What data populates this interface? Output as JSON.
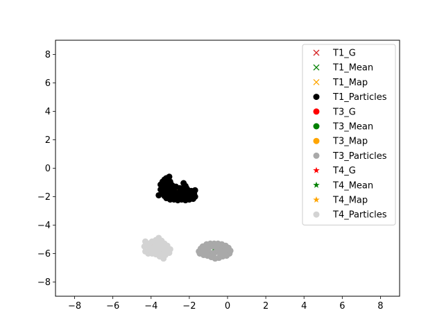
{
  "chart_data": {
    "type": "scatter",
    "title": "",
    "xlabel": "",
    "ylabel": "",
    "xlim": [
      -9,
      9
    ],
    "ylim": [
      -9,
      9
    ],
    "xticks": [
      -8,
      -6,
      -4,
      -2,
      0,
      2,
      4,
      6,
      8
    ],
    "yticks": [
      -8,
      -6,
      -4,
      -2,
      0,
      2,
      4,
      6,
      8
    ],
    "xtick_labels": [
      "−8",
      "−6",
      "−4",
      "−2",
      "0",
      "2",
      "4",
      "6",
      "8"
    ],
    "ytick_labels": [
      "−8",
      "−6",
      "−4",
      "−2",
      "0",
      "2",
      "4",
      "6",
      "8"
    ],
    "grid": false,
    "legend_position": "top-right",
    "series": [
      {
        "name": "T1_G",
        "marker": "x",
        "color": "#d62728",
        "points": [
          [
            -2.95,
            -1.4
          ]
        ]
      },
      {
        "name": "T1_Mean",
        "marker": "x",
        "color": "#008000",
        "points": [
          [
            -2.5,
            -1.75
          ]
        ]
      },
      {
        "name": "T1_Map",
        "marker": "x",
        "color": "#ffa500",
        "points": [
          [
            -2.55,
            -1.6
          ]
        ]
      },
      {
        "name": "T1_Particles",
        "marker": "o",
        "color": "#000000",
        "points": [
          [
            -3.5,
            -1.15
          ],
          [
            -3.4,
            -0.95
          ],
          [
            -3.3,
            -0.8
          ],
          [
            -3.2,
            -0.7
          ],
          [
            -3.05,
            -0.6
          ],
          [
            -3.35,
            -1.3
          ],
          [
            -3.2,
            -1.1
          ],
          [
            -3.0,
            -0.95
          ],
          [
            -3.5,
            -1.5
          ],
          [
            -3.6,
            -1.9
          ],
          [
            -3.4,
            -1.7
          ],
          [
            -3.3,
            -1.95
          ],
          [
            -3.2,
            -2.1
          ],
          [
            -3.0,
            -2.2
          ],
          [
            -2.8,
            -2.2
          ],
          [
            -2.6,
            -2.25
          ],
          [
            -2.4,
            -2.2
          ],
          [
            -2.2,
            -2.25
          ],
          [
            -2.0,
            -2.2
          ],
          [
            -1.8,
            -2.15
          ],
          [
            -1.7,
            -2.0
          ],
          [
            -1.75,
            -1.8
          ],
          [
            -1.7,
            -1.55
          ],
          [
            -1.9,
            -1.6
          ],
          [
            -2.1,
            -1.5
          ],
          [
            -2.2,
            -1.25
          ],
          [
            -2.3,
            -1.05
          ],
          [
            -2.15,
            -1.4
          ],
          [
            -2.35,
            -1.6
          ],
          [
            -2.5,
            -1.4
          ],
          [
            -2.7,
            -1.3
          ],
          [
            -2.9,
            -1.2
          ],
          [
            -3.1,
            -1.35
          ],
          [
            -3.0,
            -1.55
          ],
          [
            -2.8,
            -1.6
          ],
          [
            -2.6,
            -1.75
          ],
          [
            -2.4,
            -1.85
          ],
          [
            -2.2,
            -1.95
          ],
          [
            -2.0,
            -1.9
          ],
          [
            -1.85,
            -1.85
          ],
          [
            -2.95,
            -1.85
          ],
          [
            -3.15,
            -1.7
          ],
          [
            -2.75,
            -1.95
          ],
          [
            -2.45,
            -2.05
          ],
          [
            -2.25,
            -1.7
          ],
          [
            -2.05,
            -1.7
          ],
          [
            -3.25,
            -1.45
          ],
          [
            -2.65,
            -2.1
          ],
          [
            -2.85,
            -1.45
          ],
          [
            -2.3,
            -1.4
          ],
          [
            -1.95,
            -2.05
          ],
          [
            -3.05,
            -2.05
          ]
        ]
      },
      {
        "name": "T3_G",
        "marker": "o",
        "color": "#ff0000",
        "points": [
          [
            -1.1,
            -5.65
          ]
        ]
      },
      {
        "name": "T3_Mean",
        "marker": "o",
        "color": "#008000",
        "points": [
          [
            -0.65,
            -5.8
          ]
        ]
      },
      {
        "name": "T3_Map",
        "marker": "o",
        "color": "#ffa500",
        "points": [
          [
            -1.05,
            -5.85
          ]
        ]
      },
      {
        "name": "T3_Particles",
        "marker": "o",
        "color": "#a9a9a9",
        "points": [
          [
            -1.4,
            -5.65
          ],
          [
            -1.3,
            -5.5
          ],
          [
            -1.1,
            -5.35
          ],
          [
            -0.9,
            -5.3
          ],
          [
            -0.7,
            -5.3
          ],
          [
            -0.5,
            -5.3
          ],
          [
            -0.3,
            -5.35
          ],
          [
            -0.1,
            -5.45
          ],
          [
            0.05,
            -5.6
          ],
          [
            0.15,
            -5.8
          ],
          [
            0.1,
            -6.0
          ],
          [
            -0.05,
            -6.15
          ],
          [
            -0.25,
            -6.2
          ],
          [
            -0.45,
            -6.3
          ],
          [
            -0.65,
            -6.35
          ],
          [
            -0.85,
            -6.25
          ],
          [
            -1.05,
            -6.15
          ],
          [
            -1.25,
            -6.1
          ],
          [
            -1.45,
            -6.0
          ],
          [
            -1.5,
            -5.85
          ],
          [
            -1.2,
            -5.75
          ],
          [
            -1.0,
            -5.6
          ],
          [
            -0.8,
            -5.5
          ],
          [
            -0.6,
            -5.55
          ],
          [
            -0.4,
            -5.5
          ],
          [
            -0.2,
            -5.6
          ],
          [
            -0.1,
            -5.8
          ],
          [
            -0.3,
            -5.85
          ],
          [
            -0.5,
            -5.9
          ],
          [
            -0.7,
            -5.95
          ],
          [
            -0.9,
            -5.95
          ],
          [
            -1.1,
            -6.0
          ],
          [
            -1.3,
            -5.9
          ],
          [
            -0.55,
            -5.7
          ],
          [
            -0.35,
            -6.05
          ],
          [
            -0.75,
            -6.1
          ],
          [
            -1.15,
            -5.45
          ],
          [
            -0.15,
            -6.05
          ]
        ]
      },
      {
        "name": "T4_G",
        "marker": "*",
        "color": "#ff0000",
        "points": [
          [
            -4.05,
            -5.45
          ]
        ]
      },
      {
        "name": "T4_Mean",
        "marker": "*",
        "color": "#008000",
        "points": [
          [
            -3.7,
            -5.65
          ]
        ]
      },
      {
        "name": "T4_Map",
        "marker": "*",
        "color": "#ffa500",
        "points": [
          [
            -3.85,
            -5.55
          ]
        ]
      },
      {
        "name": "T4_Particles",
        "marker": "o",
        "color": "#d3d3d3",
        "points": [
          [
            -4.3,
            -5.15
          ],
          [
            -4.35,
            -5.5
          ],
          [
            -4.3,
            -5.85
          ],
          [
            -4.15,
            -6.0
          ],
          [
            -3.95,
            -6.0
          ],
          [
            -3.75,
            -6.05
          ],
          [
            -3.55,
            -6.2
          ],
          [
            -3.35,
            -6.35
          ],
          [
            -3.25,
            -6.1
          ],
          [
            -3.05,
            -5.95
          ],
          [
            -3.0,
            -5.7
          ],
          [
            -3.15,
            -5.45
          ],
          [
            -3.3,
            -5.3
          ],
          [
            -3.45,
            -5.1
          ],
          [
            -3.6,
            -4.9
          ],
          [
            -3.75,
            -5.05
          ],
          [
            -3.95,
            -5.15
          ],
          [
            -4.1,
            -5.3
          ],
          [
            -4.05,
            -5.7
          ],
          [
            -3.85,
            -5.8
          ],
          [
            -3.65,
            -5.85
          ],
          [
            -3.45,
            -5.9
          ],
          [
            -3.3,
            -5.75
          ],
          [
            -3.45,
            -5.5
          ],
          [
            -3.65,
            -5.35
          ],
          [
            -3.8,
            -5.3
          ],
          [
            -3.55,
            -5.65
          ],
          [
            -3.2,
            -5.55
          ],
          [
            -3.9,
            -5.6
          ],
          [
            -4.2,
            -5.45
          ],
          [
            -3.35,
            -6.0
          ],
          [
            -3.7,
            -5.5
          ]
        ]
      }
    ]
  }
}
